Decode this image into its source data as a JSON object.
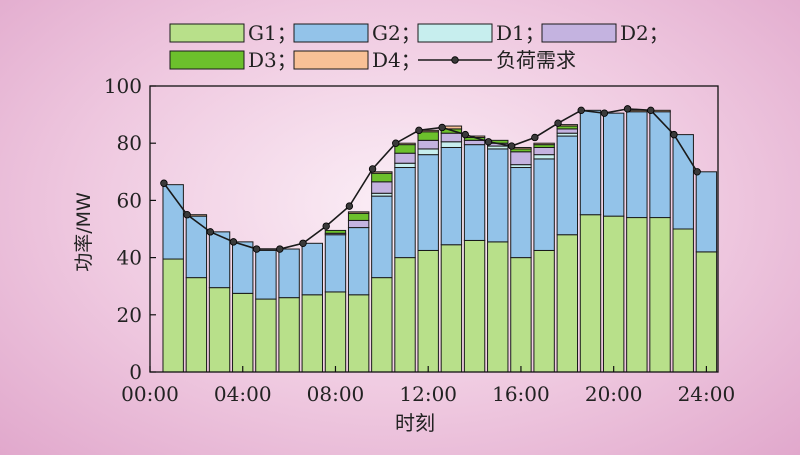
{
  "chart_data": {
    "type": "bar",
    "stacked": true,
    "xlabel": "时刻",
    "ylabel": "功率/MW",
    "ylim": [
      0,
      100
    ],
    "yticks": [
      0,
      20,
      40,
      60,
      80,
      100
    ],
    "xlim": [
      0,
      24.5
    ],
    "xticks": [
      {
        "x": 0,
        "label": "00:00"
      },
      {
        "x": 4,
        "label": "04:00"
      },
      {
        "x": 8,
        "label": "08:00"
      },
      {
        "x": 12,
        "label": "12:00"
      },
      {
        "x": 16,
        "label": "16:00"
      },
      {
        "x": 20,
        "label": "20:00"
      },
      {
        "x": 24,
        "label": "24:00"
      }
    ],
    "x": [
      1,
      2,
      3,
      4,
      5,
      6,
      7,
      8,
      9,
      10,
      11,
      12,
      13,
      14,
      15,
      16,
      17,
      18,
      19,
      20,
      21,
      22,
      23,
      24
    ],
    "series": [
      {
        "name": "G1",
        "color": "#b8e08a",
        "values": [
          39.5,
          33,
          29.5,
          27.5,
          25.5,
          26,
          27,
          28,
          27,
          33,
          40,
          42.5,
          44.5,
          46,
          45.5,
          40,
          42.5,
          48,
          55,
          54.5,
          54,
          54,
          50,
          42
        ]
      },
      {
        "name": "G2",
        "color": "#93c3e9",
        "values": [
          26,
          21.5,
          19.5,
          18,
          17,
          17,
          18,
          20,
          23.5,
          28.5,
          31.5,
          33.5,
          34,
          33.5,
          32.5,
          31.5,
          32,
          34.5,
          36.5,
          36,
          37,
          37,
          33,
          28
        ]
      },
      {
        "name": "D1",
        "color": "#c7eeee",
        "values": [
          0,
          0,
          0,
          0,
          0,
          0,
          0,
          0,
          0,
          1,
          1.5,
          2,
          2,
          0,
          1,
          1,
          1.5,
          1,
          0,
          0,
          0,
          0,
          0,
          0
        ]
      },
      {
        "name": "D2",
        "color": "#c4b3e0",
        "values": [
          0,
          0,
          0,
          0,
          0,
          0,
          0,
          0.5,
          2.5,
          4,
          3.5,
          3,
          3,
          1.5,
          1,
          4.5,
          2.5,
          1.5,
          0,
          0,
          0,
          0,
          0,
          0
        ]
      },
      {
        "name": "D3",
        "color": "#6cc02c",
        "values": [
          0,
          0,
          0,
          0,
          0,
          0,
          0,
          1,
          2.5,
          3,
          3,
          3,
          1.5,
          1,
          1,
          1,
          1,
          1,
          0,
          0,
          0,
          0,
          0,
          0
        ]
      },
      {
        "name": "D4",
        "color": "#f8c196",
        "values": [
          0,
          0.5,
          0,
          0,
          0,
          0,
          0,
          0,
          0.5,
          0.5,
          0.5,
          0.5,
          1,
          0.5,
          0,
          0.5,
          0.5,
          0.5,
          0,
          0,
          0.5,
          0.5,
          0,
          0
        ]
      }
    ],
    "demand": {
      "name": "负荷需求",
      "x": [
        0.6,
        1.6,
        2.6,
        3.6,
        4.6,
        5.6,
        6.6,
        7.6,
        8.6,
        9.6,
        10.6,
        11.6,
        12.6,
        13.6,
        14.6,
        15.6,
        16.6,
        17.6,
        18.6,
        19.6,
        20.6,
        21.6,
        22.6,
        23.6
      ],
      "values": [
        66,
        55,
        49,
        45.5,
        43,
        43,
        45,
        51,
        58,
        71,
        80,
        84.5,
        85.5,
        83,
        80.5,
        79,
        82,
        87,
        91.5,
        90.5,
        92,
        91.5,
        83,
        70
      ]
    },
    "legend": [
      {
        "key": "G1",
        "label": "G1；"
      },
      {
        "key": "G2",
        "label": "G2；"
      },
      {
        "key": "D1",
        "label": "D1；"
      },
      {
        "key": "D2",
        "label": "D2；"
      },
      {
        "key": "D3",
        "label": "D3；"
      },
      {
        "key": "D4",
        "label": "D4；"
      },
      {
        "key": "demand",
        "label": "负荷需求"
      }
    ],
    "legend_position": "top"
  }
}
